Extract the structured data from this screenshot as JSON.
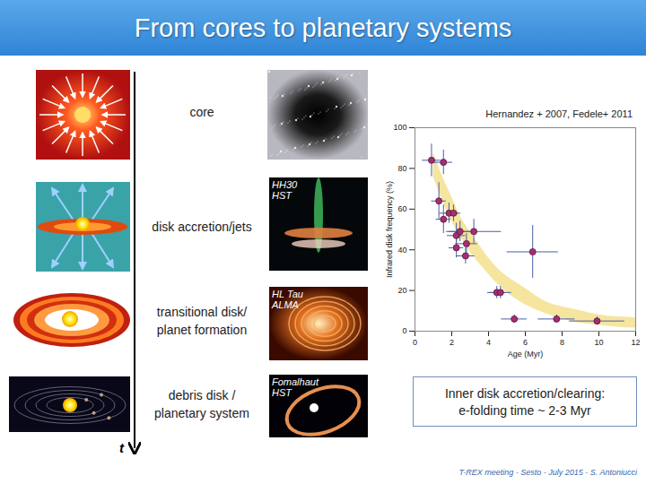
{
  "slide": {
    "title": "From cores to planetary systems",
    "stages": [
      {
        "label": [
          "core"
        ]
      },
      {
        "label": [
          "disk accretion/jets"
        ]
      },
      {
        "label": [
          "transitional disk/",
          "planet formation"
        ]
      },
      {
        "label": [
          "debris disk /",
          "planetary system"
        ]
      }
    ],
    "images": [
      {
        "label": [
          "HH30",
          "HST"
        ]
      },
      {
        "label": [
          "HL Tau",
          "ALMA"
        ]
      },
      {
        "label": [
          "Fomalhaut",
          "HST"
        ]
      }
    ],
    "time_label": "t",
    "note": [
      "Inner disk accretion/clearing:",
      "e-folding time ~ 2-3 Myr"
    ],
    "footer": "T-REX meeting - Sesto - July 2015 - S. Antoniucci"
  },
  "chart_data": {
    "type": "scatter",
    "subtitle": "Hernandez + 2007, Fedele+ 2011",
    "x_label": "Age (Myr)",
    "y_label": "Infrared disk frequency (%)",
    "xlim": [
      0,
      12
    ],
    "xticks": [
      0,
      2,
      4,
      6,
      8,
      10,
      12
    ],
    "ylim": [
      0,
      100
    ],
    "yticks": [
      0,
      20,
      40,
      60,
      80,
      100
    ],
    "grid": false,
    "marker": "circle",
    "color": "#a3306e",
    "x": [
      0.9,
      1.55,
      1.3,
      1.55,
      1.85,
      2.1,
      2.25,
      2.45,
      2.25,
      2.75,
      3.2,
      2.8,
      6.4,
      4.45,
      4.65,
      5.4,
      7.7,
      9.9
    ],
    "values": [
      84,
      83,
      64,
      55,
      58,
      58,
      47,
      49,
      41,
      37,
      49,
      43,
      39,
      19,
      19,
      6,
      6,
      5
    ],
    "x_error": [
      0.5,
      0.5,
      0.4,
      0.4,
      0.5,
      0.4,
      0.5,
      0.6,
      0.4,
      0.5,
      1.5,
      0.6,
      1.4,
      0.5,
      0.6,
      0.7,
      1.0,
      1.5
    ],
    "y_error": [
      8,
      6,
      9,
      7,
      5,
      4,
      6,
      5,
      5,
      4,
      6,
      5,
      13,
      3,
      3,
      2,
      2,
      2
    ],
    "fit_band": {
      "color": "#f3df86",
      "x": [
        1,
        1.5,
        2,
        2.5,
        3,
        4,
        5,
        6,
        7,
        8,
        9,
        10,
        11,
        12
      ],
      "low": [
        76,
        64,
        54,
        46,
        39,
        28,
        19,
        13,
        9,
        6,
        4,
        3,
        2,
        1.5
      ],
      "high": [
        88,
        76,
        66,
        56,
        49,
        36,
        27,
        21,
        15,
        12,
        10,
        8,
        7,
        6.5
      ]
    }
  }
}
